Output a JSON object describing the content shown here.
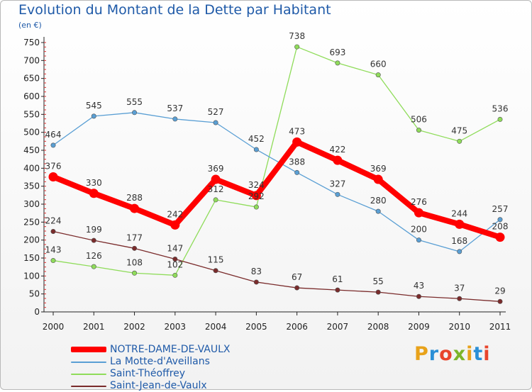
{
  "title": "Evolution du Montant de la Dette par Habitant",
  "unit_label": "(en €)",
  "brand": {
    "letters": [
      "P",
      "r",
      "o",
      "x",
      "i",
      "t",
      "i"
    ],
    "colors": [
      "#e8a21a",
      "#2b8fd6",
      "#e8452c",
      "#7cb52a",
      "#e8a21a",
      "#2b8fd6",
      "#e8452c"
    ]
  },
  "chart_data": {
    "type": "line",
    "x": [
      "2000",
      "2001",
      "2002",
      "2003",
      "2004",
      "2005",
      "2006",
      "2007",
      "2008",
      "2009",
      "2010",
      "2011"
    ],
    "ylim": [
      0,
      750
    ],
    "y_ticks": [
      "0",
      "50",
      "100",
      "150",
      "200",
      "250",
      "300",
      "350",
      "400",
      "450",
      "500",
      "550",
      "600",
      "650",
      "700",
      "750"
    ],
    "grid": false,
    "legend_position": "bottom-left",
    "series": [
      {
        "name": "NOTRE-DAME-DE-VAULX",
        "color": "#ff0000",
        "values": [
          376,
          330,
          288,
          242,
          369,
          324,
          473,
          422,
          369,
          276,
          244,
          208
        ],
        "labels": [
          "376",
          "330",
          "288",
          "242",
          "369",
          "324",
          "473",
          "422",
          "369",
          "276",
          "244",
          "208"
        ]
      },
      {
        "name": "La Motte-d'Aveillans",
        "color": "#5a9fd4",
        "values": [
          464,
          545,
          555,
          537,
          527,
          452,
          388,
          327,
          280,
          200,
          168,
          257
        ],
        "labels": [
          "464",
          "545",
          "555",
          "537",
          "527",
          "452",
          "388",
          "327",
          "280",
          "200",
          "168",
          "257"
        ]
      },
      {
        "name": "Saint-Théoffrey",
        "color": "#8fdc5a",
        "values": [
          143,
          126,
          108,
          102,
          312,
          292,
          738,
          693,
          660,
          506,
          475,
          536
        ],
        "labels": [
          "143",
          "126",
          "108",
          "102",
          "312",
          "292",
          "738",
          "693",
          "660",
          "506",
          "475",
          "536"
        ]
      },
      {
        "name": "Saint-Jean-de-Vaulx",
        "color": "#7a2b2b",
        "values": [
          224,
          199,
          177,
          147,
          115,
          83,
          67,
          61,
          55,
          43,
          37,
          29
        ],
        "labels": [
          "224",
          "199",
          "177",
          "147",
          "115",
          "83",
          "67",
          "61",
          "55",
          "43",
          "37",
          "29"
        ]
      }
    ]
  }
}
